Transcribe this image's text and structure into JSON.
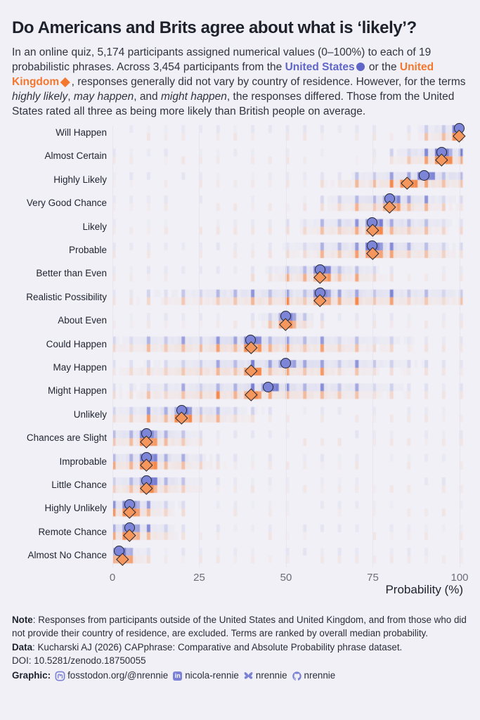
{
  "palette": {
    "page_bg": "#f1f0f6",
    "title_color": "#1d212c",
    "us_color": "#5f66c8",
    "uk_color": "#f4772f",
    "us_tile": "#6b73cf",
    "uk_tile": "#f57f3b",
    "us_marker_fill": "#7d85d9",
    "uk_marker_fill": "#f5975c",
    "marker_outline": "#232834",
    "grid_color": "#e7e6ef",
    "accent_icon": "#7b82d5"
  },
  "header": {
    "title": "Do Americans and Brits agree about what is ‘likely’?",
    "subtitle_segments": [
      {
        "t": "In an online quiz, 5,174 participants assigned numerical values (0–100%) to each of 19 probabilistic phrases. Across 3,454 participants from the "
      },
      {
        "t": "United States",
        "style": "us"
      },
      {
        "icon": "circle"
      },
      {
        "t": " or the "
      },
      {
        "t": "United Kingdom",
        "style": "uk"
      },
      {
        "icon": "diamond"
      },
      {
        "t": ", responses generally did not vary by country of residence. However, for the terms "
      },
      {
        "t": "highly likely",
        "style": "italic"
      },
      {
        "t": ", "
      },
      {
        "t": "may happen",
        "style": "italic"
      },
      {
        "t": ", and "
      },
      {
        "t": "might happen",
        "style": "italic"
      },
      {
        "t": ", the responses differed. Those from the United States rated all three as being more likely than British people on average."
      }
    ]
  },
  "chart_data": {
    "type": "heatmap",
    "description": "Heat strips show the distribution of numerical responses per phrase (top strip = United States, bottom strip = United Kingdom); markers show median response.",
    "x_axis": {
      "label": "Probability (%)",
      "ticks": [
        "0",
        "25",
        "50",
        "75",
        "100"
      ],
      "range": [
        0,
        100
      ]
    },
    "series": [
      {
        "name": "United States",
        "marker": "circle",
        "color": "#5f66c8"
      },
      {
        "name": "United Kingdom",
        "marker": "diamond",
        "color": "#f4772f"
      }
    ],
    "phrases": [
      {
        "label": "Will Happen",
        "us_median": 100,
        "uk_median": 100,
        "spread": 7
      },
      {
        "label": "Almost Certain",
        "us_median": 95,
        "uk_median": 95,
        "spread": 8
      },
      {
        "label": "Highly Likely",
        "us_median": 90,
        "uk_median": 85,
        "spread": 12
      },
      {
        "label": "Very Good Chance",
        "us_median": 80,
        "uk_median": 80,
        "spread": 10
      },
      {
        "label": "Likely",
        "us_median": 75,
        "uk_median": 75,
        "spread": 12
      },
      {
        "label": "Probable",
        "us_median": 75,
        "uk_median": 75,
        "spread": 13
      },
      {
        "label": "Better than Even",
        "us_median": 60,
        "uk_median": 60,
        "spread": 9
      },
      {
        "label": "Realistic Possibility",
        "us_median": 60,
        "uk_median": 60,
        "spread": 26
      },
      {
        "label": "About Even",
        "us_median": 50,
        "uk_median": 50,
        "spread": 4.5
      },
      {
        "label": "Could Happen",
        "us_median": 40,
        "uk_median": 40,
        "spread": 23
      },
      {
        "label": "May Happen",
        "us_median": 50,
        "uk_median": 40,
        "spread": 21
      },
      {
        "label": "Might Happen",
        "us_median": 45,
        "uk_median": 40,
        "spread": 21
      },
      {
        "label": "Unlikely",
        "us_median": 20,
        "uk_median": 20,
        "spread": 11
      },
      {
        "label": "Chances are Slight",
        "us_median": 10,
        "uk_median": 10,
        "spread": 8
      },
      {
        "label": "Improbable",
        "us_median": 10,
        "uk_median": 10,
        "spread": 10
      },
      {
        "label": "Little Chance",
        "us_median": 10,
        "uk_median": 10,
        "spread": 8
      },
      {
        "label": "Highly Unlikely",
        "us_median": 5,
        "uk_median": 5,
        "spread": 7
      },
      {
        "label": "Remote Chance",
        "us_median": 5,
        "uk_median": 5,
        "spread": 7
      },
      {
        "label": "Almost No Chance",
        "us_median": 2,
        "uk_median": 3,
        "spread": 4
      }
    ]
  },
  "footer": {
    "note_label": "Note",
    "note_text": "Responses from participants outside of the United States and United Kingdom, and from those who did not provide their country of residence, are excluded. Terms are ranked by overall median probability.",
    "data_label": "Data",
    "data_text": "Kucharski AJ (2026) CAPphrase: Comparative and Absolute Probability phrase dataset.",
    "doi_text": "DOI: 10.5281/zenodo.18750055",
    "graphic_label": "Graphic",
    "socials": [
      {
        "icon": "mastodon-icon",
        "label": "fosstodon.org/@nrennie"
      },
      {
        "icon": "linkedin-icon",
        "label": "nicola-rennie"
      },
      {
        "icon": "bluesky-icon",
        "label": "nrennie"
      },
      {
        "icon": "github-icon",
        "label": "nrennie"
      }
    ]
  }
}
